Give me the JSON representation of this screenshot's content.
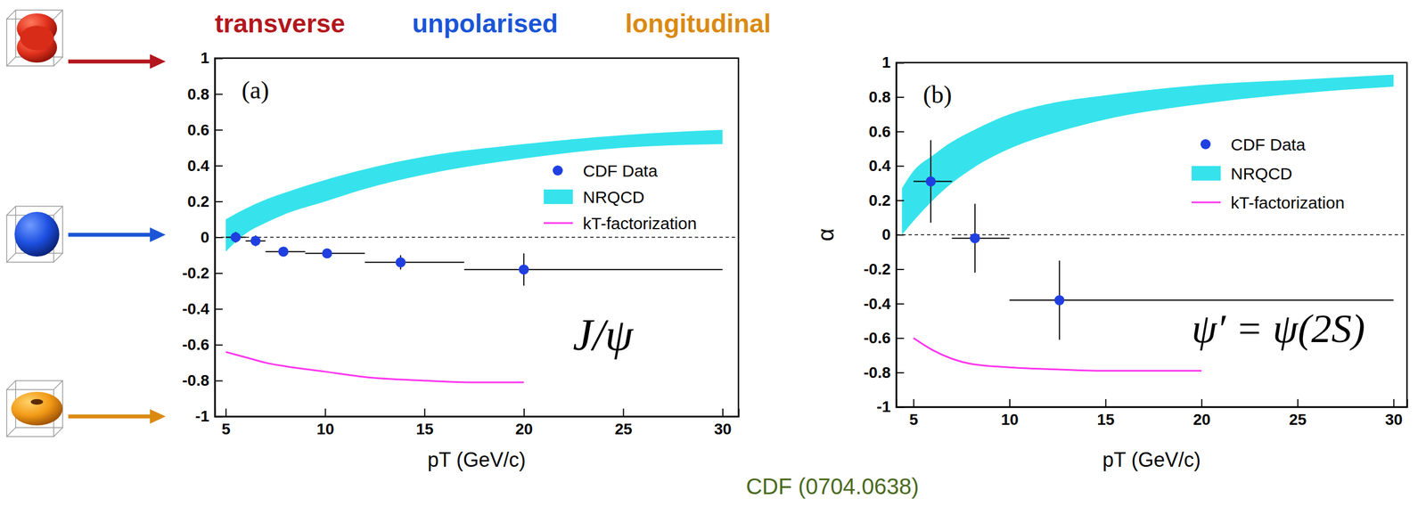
{
  "header": [
    {
      "text": "transverse",
      "color": "#b3171d"
    },
    {
      "text": "unpolarised",
      "color": "#1b55d6"
    },
    {
      "text": "longitudinal",
      "color": "#da8a12"
    }
  ],
  "source": "CDF (0704.0638)",
  "chart_data": [
    {
      "type": "scatter",
      "panel_label": "(a)",
      "annotation": "J/ψ",
      "x_label": "pT (GeV/c)",
      "xlim": [
        4.45,
        30.8
      ],
      "xticks": [
        5,
        10,
        15,
        20,
        25,
        30
      ],
      "ylim": [
        -1,
        1
      ],
      "yticks": [
        -1,
        -0.8,
        -0.6,
        -0.4,
        -0.2,
        0,
        0.2,
        0.4,
        0.6,
        0.8,
        1
      ],
      "reference_line": 0,
      "legend": "upper right",
      "series": [
        {
          "name": "CDF Data",
          "type": "scatter",
          "color": "#1f3fe0",
          "marker": "circle",
          "x": [
            5.5,
            6.5,
            7.9,
            10.1,
            13.8,
            20
          ],
          "values": [
            0.0,
            -0.02,
            -0.08,
            -0.09,
            -0.14,
            -0.18
          ],
          "yerr": [
            0.03,
            0.03,
            0.02,
            0.02,
            0.04,
            0.09
          ],
          "x_low": [
            5,
            6,
            7,
            9,
            12,
            17
          ],
          "x_high": [
            6,
            7,
            9,
            12,
            17,
            30
          ]
        },
        {
          "name": "NRQCD",
          "type": "band",
          "color": "#36e3ec",
          "x": [
            5,
            6,
            7,
            8,
            10,
            12,
            15,
            20,
            25,
            30
          ],
          "lower": [
            -0.08,
            0.02,
            0.08,
            0.13,
            0.2,
            0.27,
            0.35,
            0.44,
            0.5,
            0.52
          ],
          "upper": [
            0.1,
            0.16,
            0.21,
            0.25,
            0.32,
            0.38,
            0.45,
            0.52,
            0.57,
            0.6
          ]
        },
        {
          "name": "kT-factorization",
          "type": "line",
          "color": "#ff33ee",
          "line_style": "solid",
          "x": [
            5,
            6,
            7,
            8,
            10,
            12,
            15,
            17.5,
            20
          ],
          "values": [
            -0.64,
            -0.67,
            -0.7,
            -0.72,
            -0.75,
            -0.78,
            -0.8,
            -0.81,
            -0.81
          ]
        }
      ]
    },
    {
      "type": "scatter",
      "panel_label": "(b)",
      "annotation": "ψ′ = ψ(2S)",
      "x_label": "pT (GeV/c)",
      "y_label": "α",
      "xlim": [
        4.1,
        30.7
      ],
      "xticks": [
        5,
        10,
        15,
        20,
        25,
        30
      ],
      "ylim": [
        -1,
        1
      ],
      "yticks": [
        -1,
        -0.8,
        -0.6,
        -0.4,
        -0.2,
        0,
        0.2,
        0.4,
        0.6,
        0.8,
        1
      ],
      "reference_line": 0,
      "legend": "upper right",
      "series": [
        {
          "name": "CDF Data",
          "type": "scatter",
          "color": "#1f3fe0",
          "marker": "circle",
          "x": [
            5.9,
            8.2,
            12.6
          ],
          "values": [
            0.31,
            -0.02,
            -0.38
          ],
          "yerr": [
            0.24,
            0.2,
            0.23
          ],
          "x_low": [
            5,
            7,
            10
          ],
          "x_high": [
            7,
            10,
            30
          ]
        },
        {
          "name": "NRQCD",
          "type": "band",
          "color": "#36e3ec",
          "x": [
            4.4,
            5,
            6,
            7,
            8,
            10,
            12,
            15,
            20,
            25,
            30
          ],
          "lower": [
            0.0,
            0.08,
            0.2,
            0.3,
            0.38,
            0.5,
            0.58,
            0.67,
            0.76,
            0.82,
            0.86
          ],
          "upper": [
            0.27,
            0.37,
            0.46,
            0.54,
            0.6,
            0.7,
            0.76,
            0.81,
            0.87,
            0.9,
            0.93
          ]
        },
        {
          "name": "kT-factorization",
          "type": "line",
          "color": "#ff33ee",
          "line_style": "solid",
          "x": [
            5,
            6,
            7,
            8,
            10,
            12,
            15,
            20
          ],
          "values": [
            -0.6,
            -0.67,
            -0.72,
            -0.75,
            -0.77,
            -0.78,
            -0.79,
            -0.79
          ]
        }
      ]
    }
  ]
}
